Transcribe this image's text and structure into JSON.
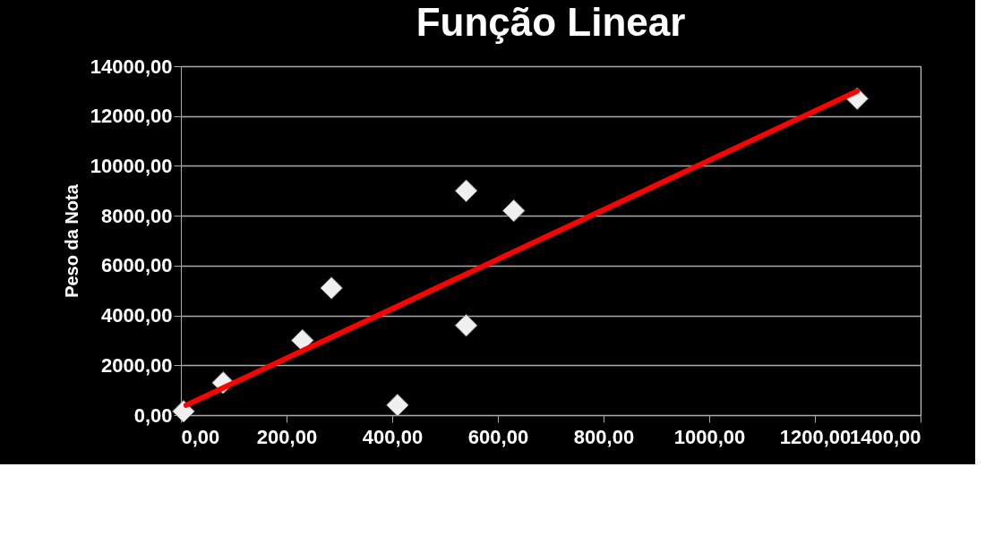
{
  "chart_data": {
    "type": "scatter",
    "title": "Função Linear",
    "ylabel": "Peso da Nota",
    "series": [
      {
        "color": "#f0f0f0",
        "marker": "diamond",
        "x": [
          5,
          80,
          230,
          285,
          410,
          540,
          540,
          630,
          1280
        ],
        "values": [
          150,
          1300,
          3000,
          5100,
          400,
          9000,
          3600,
          8200,
          12700
        ]
      },
      {
        "type": "line",
        "color": "#ff0000",
        "marker": "none",
        "line_style": "solid",
        "x": [
          10,
          1280
        ],
        "values": [
          400,
          13000
        ]
      }
    ],
    "xlim": [
      0,
      1400
    ],
    "xticks": [
      {
        "value": 0,
        "label": "0,00"
      },
      {
        "value": 200,
        "label": "200,00"
      },
      {
        "value": 400,
        "label": "400,00"
      },
      {
        "value": 600,
        "label": "600,00"
      },
      {
        "value": 800,
        "label": "800,00"
      },
      {
        "value": 1000,
        "label": "1000,00"
      },
      {
        "value": 1200,
        "label": "1200,00"
      },
      {
        "value": 1400,
        "label": "1400,00"
      }
    ],
    "ylim": [
      0,
      14000
    ],
    "yticks": [
      {
        "value": 0,
        "label": "0,00"
      },
      {
        "value": 2000,
        "label": "2000,00"
      },
      {
        "value": 4000,
        "label": "4000,00"
      },
      {
        "value": 6000,
        "label": "6000,00"
      },
      {
        "value": 8000,
        "label": "8000,00"
      },
      {
        "value": 10000,
        "label": "10000,00"
      },
      {
        "value": 12000,
        "label": "12000,00"
      },
      {
        "value": 14000,
        "label": "14000,00"
      }
    ],
    "grid": "y"
  }
}
